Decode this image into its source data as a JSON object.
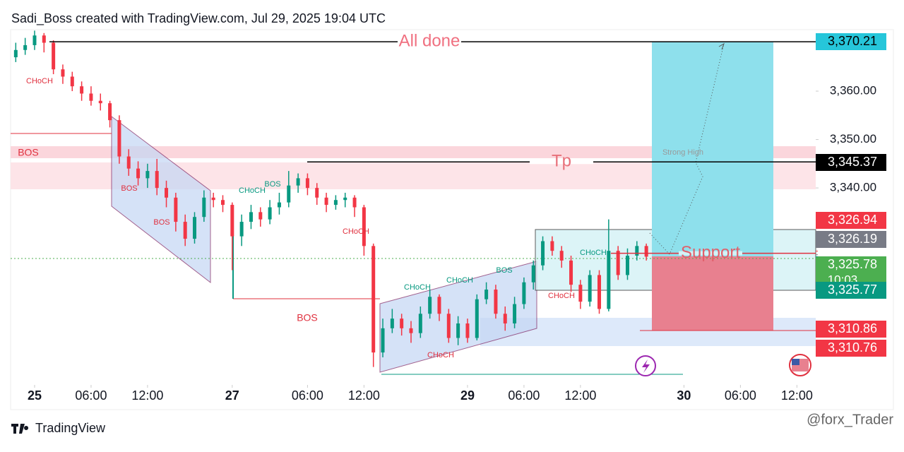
{
  "header": "Sadi_Boss created with TradingView.com, Jul 29, 2025 19:04 UTC",
  "footer": "TradingView",
  "watermark": "@forx_Trader",
  "chart_data": {
    "type": "candlestick",
    "x": [
      -2,
      -1,
      0,
      1,
      2,
      3,
      4,
      5,
      6,
      7,
      8,
      9,
      10,
      11,
      12,
      13,
      14,
      15,
      16,
      17,
      18,
      19,
      20,
      21,
      22,
      23,
      24,
      25,
      26,
      27,
      28,
      29,
      30,
      31,
      32,
      33,
      34,
      35,
      36,
      37,
      38,
      39,
      40,
      41,
      42,
      43,
      44,
      45,
      46,
      47,
      48,
      49,
      50,
      51,
      52,
      53,
      54,
      55,
      56,
      57,
      58,
      59,
      60,
      61,
      62,
      63,
      64,
      65
    ],
    "open": [
      3367,
      3368.5,
      3369.5,
      3371.5,
      3370,
      3364.5,
      3363,
      3361,
      3359.5,
      3358,
      3357.5,
      3354,
      3346.5,
      3344,
      3342,
      3343.5,
      3340,
      3338,
      3333,
      3329.5,
      3334,
      3338,
      3337.5,
      3336.5,
      3330,
      3333,
      3335,
      3333.5,
      3336,
      3337,
      3340.5,
      3342,
      3340,
      3338,
      3336.5,
      3337.5,
      3338,
      3336,
      3328,
      3306,
      3311,
      3313,
      3311,
      3310,
      3314,
      3317.5,
      3314,
      3309,
      3312,
      3309,
      3317,
      3319,
      3314,
      3312,
      3316,
      3320.5,
      3324,
      3329,
      3327,
      3325,
      3320,
      3316.5,
      3322,
      3315,
      3327,
      3322,
      3326,
      3328
    ],
    "high": [
      3370,
      3371,
      3372.5,
      3372,
      3370.5,
      3365.5,
      3364,
      3362,
      3361,
      3359.5,
      3358,
      3355,
      3348,
      3345.5,
      3345,
      3346,
      3341.5,
      3339,
      3334.5,
      3335,
      3339.5,
      3339,
      3338.5,
      3337,
      3334.5,
      3336.5,
      3336,
      3337.5,
      3339,
      3343.5,
      3343,
      3343,
      3341,
      3339,
      3338.5,
      3339,
      3338.5,
      3336.5,
      3328.5,
      3313,
      3315,
      3314,
      3312.5,
      3315.5,
      3319,
      3318,
      3315,
      3313.5,
      3313,
      3318,
      3320.5,
      3320,
      3315.5,
      3317.5,
      3321.5,
      3325,
      3330,
      3330,
      3328,
      3326,
      3321,
      3323,
      3323,
      3333.5,
      3328,
      3327.5,
      3329,
      3328.5
    ],
    "low": [
      3366,
      3367.5,
      3368.5,
      3368,
      3363.5,
      3361.5,
      3360,
      3358,
      3357,
      3356,
      3352.5,
      3345,
      3342.5,
      3340.5,
      3340,
      3338.5,
      3336,
      3331,
      3328,
      3328.5,
      3333,
      3336,
      3335,
      3323,
      3328,
      3331.5,
      3332,
      3332.5,
      3334.5,
      3336,
      3339,
      3338.5,
      3336.5,
      3335,
      3335.5,
      3336,
      3334,
      3326,
      3303,
      3305,
      3310,
      3309.5,
      3308,
      3309,
      3313,
      3312.5,
      3308,
      3307.5,
      3308,
      3308.5,
      3316,
      3313,
      3310.5,
      3311,
      3315,
      3319,
      3323,
      3326,
      3323.5,
      3318.5,
      3315,
      3315.5,
      3314,
      3314.5,
      3321,
      3321,
      3325,
      3325
    ],
    "close": [
      3368.5,
      3369.5,
      3371.5,
      3370,
      3364.5,
      3363,
      3361,
      3359.5,
      3358,
      3357.5,
      3354,
      3346.5,
      3344,
      3342,
      3343.5,
      3340,
      3338,
      3333,
      3329.5,
      3334,
      3338,
      3337.5,
      3336.5,
      3330,
      3333,
      3335,
      3333.5,
      3336,
      3337,
      3340.5,
      3342,
      3340,
      3338,
      3336.5,
      3337.5,
      3338,
      3336,
      3328,
      3306,
      3311,
      3313,
      3311,
      3310,
      3314,
      3317.5,
      3314,
      3309,
      3312,
      3309,
      3317,
      3319,
      3314,
      3312,
      3316,
      3320.5,
      3324,
      3329,
      3327,
      3325,
      3320,
      3316.5,
      3322,
      3315,
      3327,
      3322,
      3326,
      3328,
      3325.8
    ],
    "up_color": "#089981",
    "down_color": "#f23645",
    "xlim": [
      -2.55,
      83
    ],
    "xticks": [
      {
        "value": 0,
        "label": "25"
      },
      {
        "value": 6,
        "label": "06:00"
      },
      {
        "value": 12,
        "label": "12:00"
      },
      {
        "value": 21,
        "label": "27"
      },
      {
        "value": 29,
        "label": "06:00"
      },
      {
        "value": 35,
        "label": "12:00"
      },
      {
        "value": 46,
        "label": "29"
      },
      {
        "value": 52,
        "label": "06:00"
      },
      {
        "value": 58,
        "label": "12:00"
      },
      {
        "value": 69,
        "label": "30"
      },
      {
        "value": 75,
        "label": "06:00"
      },
      {
        "value": 81,
        "label": "12:00"
      }
    ],
    "ylim": [
      3299.3,
      3372.7
    ],
    "yticks": [
      {
        "value": 3340,
        "label": "3,340.00"
      },
      {
        "value": 3350,
        "label": "3,350.00"
      },
      {
        "value": 3360,
        "label": "3,360.00"
      }
    ],
    "levels": [
      {
        "value": 3370.21,
        "label": "All done"
      },
      {
        "value": 3345.37,
        "label": "Tp"
      },
      {
        "value": 3326.5,
        "label": "Support"
      }
    ],
    "price_labels": [
      {
        "value": 3370.21,
        "label": "3,370.21",
        "color": "#26c6da"
      },
      {
        "value": 3345.37,
        "label": "3,345.37",
        "color": "#000000"
      },
      {
        "value": 3326.94,
        "label": "3,326.94",
        "color": "#f23645"
      },
      {
        "value": 3326.19,
        "label": "3,326.19",
        "color": "#787b86"
      },
      {
        "value": 3325.78,
        "label": "3,325.78",
        "sublabel": "10:03",
        "color": "#4caf50"
      },
      {
        "value": 3325.77,
        "label": "3,325.77",
        "color": "#089981"
      },
      {
        "value": 3310.86,
        "label": "3,310.86",
        "color": "#f23645"
      },
      {
        "value": 3310.76,
        "label": "3,310.76",
        "color": "#f23645"
      }
    ],
    "annotations": [
      {
        "text": "CHoCH",
        "color": "#e0303e"
      },
      {
        "text": "BOS",
        "color": "#e0303e"
      },
      {
        "text": "BOS",
        "color": "#e0303e"
      },
      {
        "text": "BOS",
        "color": "#e0303e"
      },
      {
        "text": "CHoCH",
        "color": "#089981"
      },
      {
        "text": "BOS",
        "color": "#089981"
      },
      {
        "text": "CHoCH",
        "color": "#e0303e"
      },
      {
        "text": "BOS",
        "color": "#e0303e"
      },
      {
        "text": "CHoCH",
        "color": "#089981"
      },
      {
        "text": "CHoCH",
        "color": "#089981"
      },
      {
        "text": "BOS",
        "color": "#089981"
      },
      {
        "text": "CHoCH",
        "color": "#e0303e"
      },
      {
        "text": "CHoCH",
        "color": "#e0303e"
      },
      {
        "text": "CHoCH",
        "color": "#089981"
      },
      {
        "text": "Strong High",
        "color": "#999999"
      }
    ]
  }
}
